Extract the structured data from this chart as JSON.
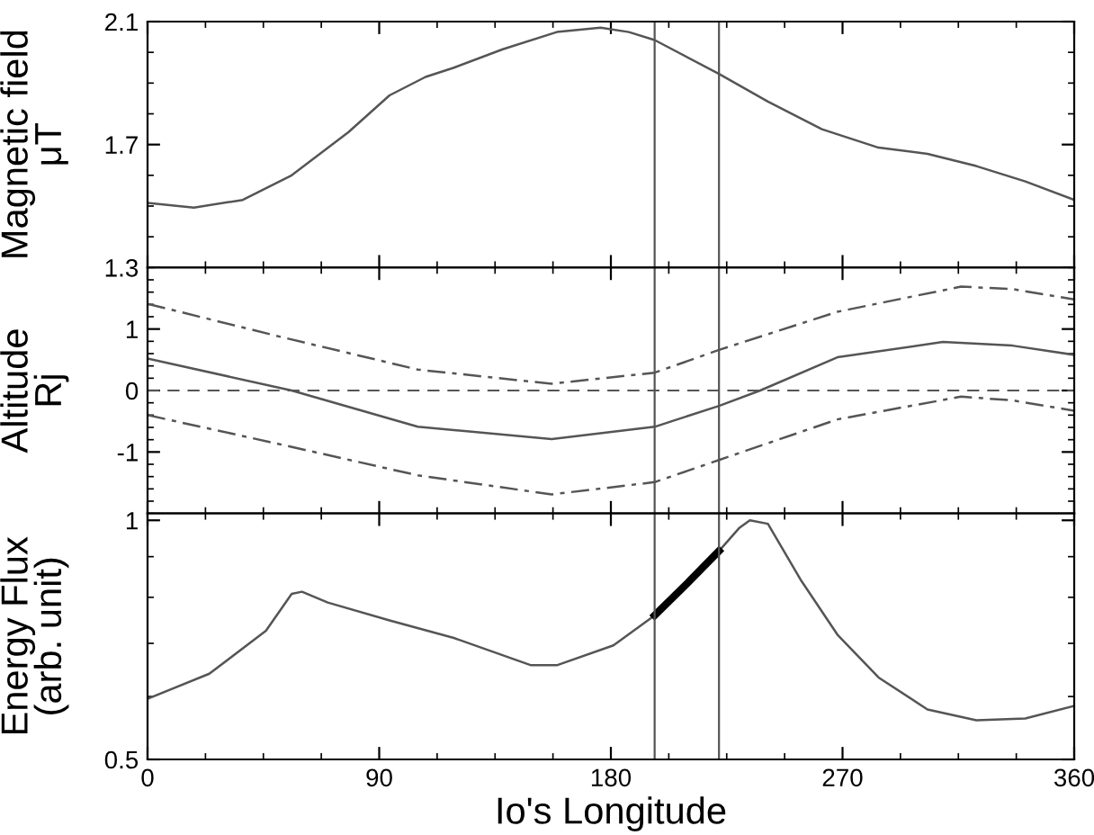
{
  "chart_data": [
    {
      "type": "line",
      "ylabel": "Magnetic field\nμT",
      "xlim": [
        0,
        360
      ],
      "xticks": [
        0,
        90,
        180,
        270,
        360
      ],
      "ylim": [
        1.3,
        2.1
      ],
      "yticks": [
        1.3,
        1.7,
        2.1
      ],
      "tick_labels": "y",
      "series": [
        {
          "color": "#555555",
          "x": [
            0,
            18,
            37,
            56,
            78,
            94,
            108,
            119,
            138,
            159,
            176,
            187,
            197,
            222,
            241,
            262,
            284,
            303,
            322,
            341,
            360
          ],
          "values": [
            1.51,
            1.495,
            1.52,
            1.6,
            1.74,
            1.86,
            1.92,
            1.95,
            2.01,
            2.066,
            2.08,
            2.066,
            2.04,
            1.93,
            1.84,
            1.75,
            1.69,
            1.67,
            1.63,
            1.58,
            1.52
          ]
        }
      ],
      "ref_lines": [
        {
          "axis": "x",
          "value": 197,
          "color": "#555555"
        },
        {
          "axis": "x",
          "value": 222,
          "color": "#555555"
        }
      ]
    },
    {
      "type": "line",
      "ylabel": "Altitude\nRj",
      "xlim": [
        0,
        360
      ],
      "xticks": [
        0,
        90,
        180,
        270,
        360
      ],
      "ylim": [
        -2,
        2
      ],
      "yticks": [
        -1,
        0,
        1
      ],
      "tick_labels": "y",
      "series": [
        {
          "color": "#555555",
          "line_style": "solid",
          "x": [
            0,
            56,
            105,
            157,
            197,
            222,
            238,
            268,
            309,
            336,
            360
          ],
          "values": [
            0.52,
            0,
            -0.59,
            -0.79,
            -0.59,
            -0.25,
            0,
            0.54,
            0.79,
            0.73,
            0.58
          ]
        },
        {
          "color": "#555555",
          "line_style": "dashdot",
          "x": [
            0,
            51,
            105,
            157,
            197,
            222,
            268,
            316,
            336,
            360
          ],
          "values": [
            1.41,
            0.88,
            0.34,
            0.11,
            0.29,
            0.66,
            1.28,
            1.69,
            1.65,
            1.48
          ]
        },
        {
          "color": "#555555",
          "line_style": "dashdot",
          "x": [
            0,
            51,
            105,
            157,
            197,
            222,
            268,
            316,
            336,
            360
          ],
          "values": [
            -0.4,
            -0.87,
            -1.38,
            -1.69,
            -1.49,
            -1.13,
            -0.47,
            -0.1,
            -0.16,
            -0.33
          ]
        }
      ],
      "ref_lines": [
        {
          "axis": "y",
          "value": 0,
          "color": "#555555",
          "line_style": "dashed"
        },
        {
          "axis": "x",
          "value": 197,
          "color": "#555555"
        },
        {
          "axis": "x",
          "value": 222,
          "color": "#555555"
        }
      ]
    },
    {
      "type": "line",
      "ylabel": "Energy Flux\n(arb. unit)",
      "xlabel": "Io's Longitude",
      "log": "y",
      "xlim": [
        0,
        360
      ],
      "xticks": [
        0,
        90,
        180,
        270,
        360
      ],
      "ylim": [
        0.5,
        1.02
      ],
      "yticks": [
        0.5,
        1
      ],
      "series": [
        {
          "color": "#555555",
          "x": [
            0,
            24,
            46,
            56,
            60,
            70,
            94,
            119,
            149,
            159,
            181,
            197,
            222,
            230,
            234,
            241,
            254,
            268,
            284,
            303,
            322,
            341,
            360
          ],
          "values": [
            0.596,
            0.641,
            0.726,
            0.808,
            0.813,
            0.788,
            0.748,
            0.711,
            0.657,
            0.657,
            0.696,
            0.759,
            0.915,
            0.979,
            1.0,
            0.99,
            0.839,
            0.718,
            0.634,
            0.578,
            0.56,
            0.563,
            0.584
          ]
        },
        {
          "color": "#000000",
          "x": [
            197,
            210,
            222
          ],
          "values": [
            0.759,
            0.835,
            0.915
          ]
        }
      ],
      "ref_lines": [
        {
          "axis": "x",
          "value": 197,
          "color": "#555555"
        },
        {
          "axis": "x",
          "value": 222,
          "color": "#555555"
        }
      ]
    }
  ]
}
